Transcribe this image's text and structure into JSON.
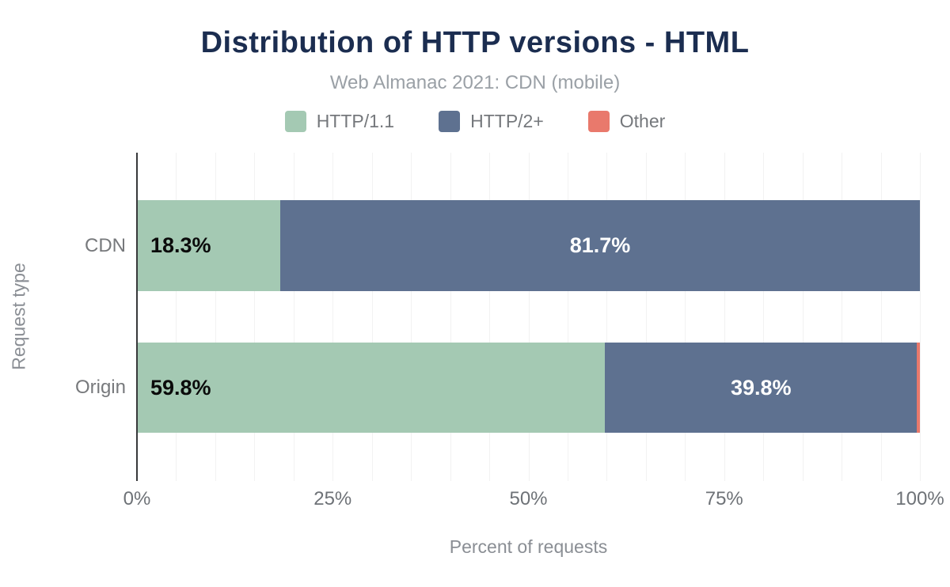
{
  "chart_data": {
    "type": "bar",
    "orientation": "horizontal-stacked",
    "title": "Distribution of HTTP versions - HTML",
    "subtitle": "Web Almanac 2021: CDN (mobile)",
    "xlabel": "Percent of requests",
    "ylabel": "Request type",
    "categories": [
      "CDN",
      "Origin"
    ],
    "series": [
      {
        "name": "HTTP/1.1",
        "color": "#a4c9b3",
        "values": [
          18.3,
          59.8
        ],
        "labels": [
          "18.3%",
          "59.8%"
        ]
      },
      {
        "name": "HTTP/2+",
        "color": "#5e7190",
        "values": [
          81.7,
          39.8
        ],
        "labels": [
          "81.7%",
          "39.8%"
        ]
      },
      {
        "name": "Other",
        "color": "#e9796c",
        "values": [
          0.0,
          0.4
        ],
        "labels": [
          "",
          ""
        ]
      }
    ],
    "x_ticks": [
      "0%",
      "25%",
      "50%",
      "75%",
      "100%"
    ],
    "xlim": [
      0,
      100
    ],
    "grid": {
      "vertical_step_percent": 5,
      "color": "#f2f2f2"
    },
    "legend_position": "top"
  },
  "colors": {
    "title": "#1b2d50",
    "subtitle": "#9aa0a6",
    "axis_text": "#6e7277",
    "axis_title": "#8a8e94",
    "grid": "#f2f2f2",
    "spine": "#38393b",
    "bar_label_dark": "#0b0b0b",
    "bar_label_light": "#ffffff"
  }
}
